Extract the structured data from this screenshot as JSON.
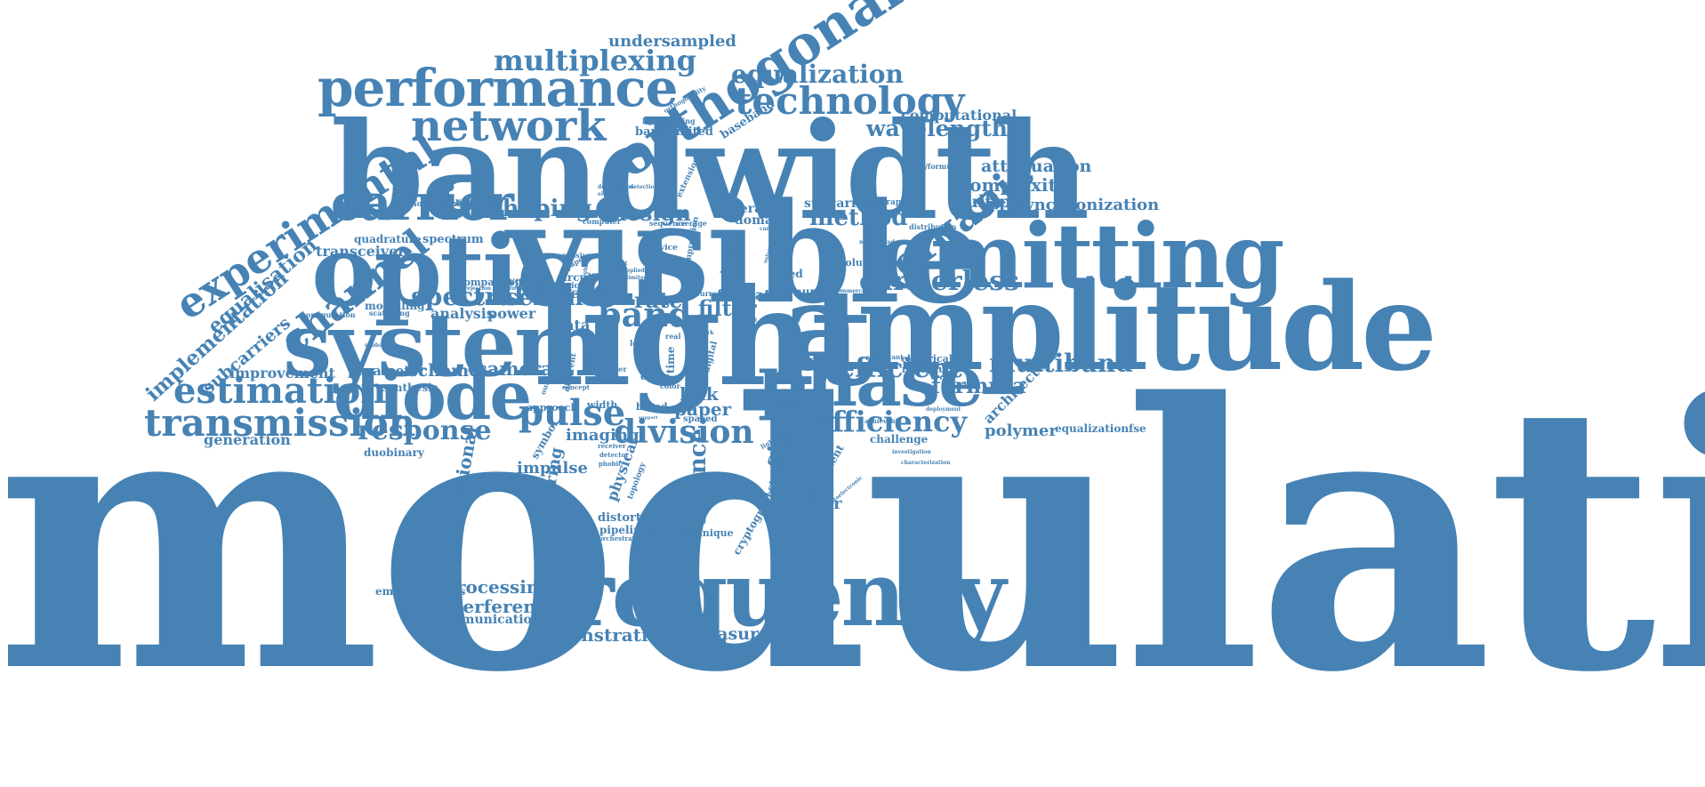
{
  "color": "#4682b4",
  "words": [
    {
      "text": "modulation",
      "size": 4.7,
      "weight": "xxl"
    },
    {
      "text": "bandwidth",
      "size": 1.5
    },
    {
      "text": "visible",
      "size": 1.45
    },
    {
      "text": "light",
      "size": 1.2
    },
    {
      "text": "amplitude",
      "size": 1.2
    },
    {
      "text": "optical",
      "size": 1.0
    },
    {
      "text": "system",
      "size": 1.0
    },
    {
      "text": "frequency",
      "size": 1.0
    },
    {
      "text": "emitting",
      "size": 0.95
    },
    {
      "text": "phase",
      "size": 0.75
    },
    {
      "text": "diode",
      "size": 0.7
    },
    {
      "text": "performance",
      "size": 0.6
    },
    {
      "text": "orthogonal",
      "size": 0.6
    },
    {
      "text": "carrier",
      "size": 0.55
    },
    {
      "text": "network",
      "size": 0.5
    },
    {
      "text": "technology",
      "size": 0.45
    },
    {
      "text": "experimental",
      "size": 0.45
    },
    {
      "text": "channel",
      "size": 0.45
    },
    {
      "text": "transmission",
      "size": 0.45
    },
    {
      "text": "estimation",
      "size": 0.42
    },
    {
      "text": "organic",
      "size": 0.42
    },
    {
      "text": "pulse",
      "size": 0.42
    },
    {
      "text": "division",
      "size": 0.36
    },
    {
      "text": "band",
      "size": 0.36
    },
    {
      "text": "efficiency",
      "size": 0.34
    },
    {
      "text": "carrierless",
      "size": 0.34
    },
    {
      "text": "multiplexing",
      "size": 0.32
    },
    {
      "text": "spectral",
      "size": 0.3
    },
    {
      "text": "response",
      "size": 0.3
    },
    {
      "text": "efficient",
      "size": 0.3
    },
    {
      "text": "equalization",
      "size": 0.28
    },
    {
      "text": "multiband",
      "size": 0.28
    },
    {
      "text": "shaping",
      "size": 0.26
    },
    {
      "text": "method",
      "size": 0.26
    },
    {
      "text": "sefdm",
      "size": 0.26
    },
    {
      "text": "science",
      "size": 0.26
    },
    {
      "text": "wavelength",
      "size": 0.25
    },
    {
      "text": "design",
      "size": 0.24
    },
    {
      "text": "filter",
      "size": 0.24
    },
    {
      "text": "formula",
      "size": 0.24
    },
    {
      "text": "signal",
      "size": 0.24
    },
    {
      "text": "rate",
      "size": 0.24
    },
    {
      "text": "implementation",
      "size": 0.23
    },
    {
      "text": "equalisation",
      "size": 0.22
    },
    {
      "text": "undersampled",
      "size": 0.2
    },
    {
      "text": "camera",
      "size": 0.22
    },
    {
      "text": "conventional",
      "size": 0.2
    },
    {
      "text": "polymer",
      "size": 0.2
    },
    {
      "text": "complexity",
      "size": 0.2
    },
    {
      "text": "attenuation",
      "size": 0.19
    },
    {
      "text": "multiple",
      "size": 0.19
    },
    {
      "text": "synchronization",
      "size": 0.18
    },
    {
      "text": "processing",
      "size": 0.2
    },
    {
      "text": "interference",
      "size": 0.2
    },
    {
      "text": "demonstration",
      "size": 0.2
    },
    {
      "text": "measurement",
      "size": 0.19
    },
    {
      "text": "link",
      "size": 0.2
    },
    {
      "text": "paper",
      "size": 0.2
    },
    {
      "text": "scheme",
      "size": 0.19
    },
    {
      "text": "subcarriers",
      "size": 0.19
    },
    {
      "text": "improvement",
      "size": 0.17
    },
    {
      "text": "generation",
      "size": 0.17
    },
    {
      "text": "engineering",
      "size": 0.18
    },
    {
      "text": "impulse",
      "size": 0.18
    },
    {
      "text": "imaging",
      "size": 0.18
    },
    {
      "text": "equalizer",
      "size": 0.18
    },
    {
      "text": "computational",
      "size": 0.16
    },
    {
      "text": "transceiver",
      "size": 0.16
    },
    {
      "text": "architecture",
      "size": 0.16
    },
    {
      "text": "analysis",
      "size": 0.16
    },
    {
      "text": "power",
      "size": 0.16
    },
    {
      "text": "data",
      "size": 0.16
    },
    {
      "text": "format",
      "size": 0.16
    },
    {
      "text": "parameter",
      "size": 0.16
    },
    {
      "text": "physical",
      "size": 0.16
    },
    {
      "text": "iterative",
      "size": 0.14
    },
    {
      "text": "domain",
      "size": 0.14
    },
    {
      "text": "subcarrier",
      "size": 0.14
    },
    {
      "text": "spectrum",
      "size": 0.13
    },
    {
      "text": "quadrature",
      "size": 0.13
    },
    {
      "text": "modelling",
      "size": 0.12
    },
    {
      "text": "synthesis",
      "size": 0.12
    },
    {
      "text": "communicationvlc",
      "size": 0.14
    },
    {
      "text": "emittingdiodes",
      "size": 0.13
    },
    {
      "text": "duobinary",
      "size": 0.12
    },
    {
      "text": "distortion",
      "size": 0.13
    },
    {
      "text": "pipelining",
      "size": 0.12
    },
    {
      "text": "technique",
      "size": 0.11
    },
    {
      "text": "optic",
      "size": 0.16
    },
    {
      "text": "circuit",
      "size": 0.12
    },
    {
      "text": "baseband",
      "size": 0.13
    },
    {
      "text": "bandlimited",
      "size": 0.13
    },
    {
      "text": "nyquist",
      "size": 0.12
    },
    {
      "text": "comparison",
      "size": 0.11
    },
    {
      "text": "cryptography",
      "size": 0.12
    },
    {
      "text": "component",
      "size": 0.12
    },
    {
      "text": "challenge",
      "size": 0.12
    },
    {
      "text": "electrical",
      "size": 0.11
    },
    {
      "text": "maximum",
      "size": 0.11
    },
    {
      "text": "number",
      "size": 0.12
    },
    {
      "text": "evolution",
      "size": 0.11
    },
    {
      "text": "speed",
      "size": 0.12
    },
    {
      "text": "equalizationfse",
      "size": 0.12
    },
    {
      "text": "standard",
      "size": 0.12
    },
    {
      "text": "symbol",
      "size": 0.12
    },
    {
      "text": "approach",
      "size": 0.11
    },
    {
      "text": "width",
      "size": 0.11
    },
    {
      "text": "based",
      "size": 0.11
    },
    {
      "text": "error",
      "size": 0.11
    },
    {
      "text": "time",
      "size": 0.11
    },
    {
      "text": "holographic",
      "size": 0.09
    },
    {
      "text": "likelihood",
      "size": 0.09
    },
    {
      "text": "holography",
      "size": 0.09
    },
    {
      "text": "configuration",
      "size": 0.08
    },
    {
      "text": "scattering",
      "size": 0.08
    },
    {
      "text": "lightemitting",
      "size": 0.08
    },
    {
      "text": "orthogonality",
      "size": 0.07
    },
    {
      "text": "distribution",
      "size": 0.08
    },
    {
      "text": "tex></formula",
      "size": 0.08
    },
    {
      "text": "computer",
      "size": 0.08
    },
    {
      "text": "sequence",
      "size": 0.08
    },
    {
      "text": "average",
      "size": 0.08
    },
    {
      "text": "orchestration",
      "size": 0.07
    },
    {
      "text": "detector",
      "size": 0.07
    },
    {
      "text": "phobic",
      "size": 0.07
    },
    {
      "text": "receiver",
      "size": 0.07
    },
    {
      "text": "topology",
      "size": 0.09
    },
    {
      "text": "extension",
      "size": 0.09
    },
    {
      "text": "compression",
      "size": 0.09
    },
    {
      "text": "wireless",
      "size": 0.09
    },
    {
      "text": "device",
      "size": 0.09
    },
    {
      "text": "passive",
      "size": 0.08
    },
    {
      "text": "shape",
      "size": 0.08
    },
    {
      "text": "physic",
      "size": 0.09
    },
    {
      "text": "different",
      "size": 0.09
    },
    {
      "text": "order",
      "size": 0.09
    },
    {
      "text": "fiber",
      "size": 0.09
    },
    {
      "text": "meter",
      "size": 0.08
    },
    {
      "text": "led",
      "size": 0.09
    },
    {
      "text": "real",
      "size": 0.08
    },
    {
      "text": "color",
      "size": 0.08
    },
    {
      "text": "spaced",
      "size": 0.1
    },
    {
      "text": "digital",
      "size": 0.1
    },
    {
      "text": "current",
      "size": 0.08
    },
    {
      "text": "output",
      "size": 0.08
    },
    {
      "text": "concept",
      "size": 0.07
    },
    {
      "text": "condition",
      "size": 0.08
    },
    {
      "text": "significant",
      "size": 0.07
    },
    {
      "text": "achievable",
      "size": 0.07
    },
    {
      "text": "deployment",
      "size": 0.06
    },
    {
      "text": "investigation",
      "size": 0.06
    },
    {
      "text": "characterization",
      "size": 0.06
    },
    {
      "text": "lighting",
      "size": 0.07
    },
    {
      "text": "transmitter",
      "size": 0.06
    },
    {
      "text": "advance",
      "size": 0.06
    },
    {
      "text": "development",
      "size": 0.06
    },
    {
      "text": "optoelectronic",
      "size": 0.06
    },
    {
      "text": "degradation",
      "size": 0.06
    },
    {
      "text": "electronic",
      "size": 0.06
    },
    {
      "text": "detection",
      "size": 0.06
    },
    {
      "text": "applied",
      "size": 0.06
    },
    {
      "text": "limited",
      "size": 0.06
    },
    {
      "text": "higher",
      "size": 0.06
    },
    {
      "text": "present",
      "size": 0.06
    },
    {
      "text": "work",
      "size": 0.06
    },
    {
      "text": "budget",
      "size": 0.06
    },
    {
      "text": "propose",
      "size": 0.06
    },
    {
      "text": "multiplexed",
      "size": 0.06
    },
    {
      "text": "commercial",
      "size": 0.06
    },
    {
      "text": "solution",
      "size": 0.06
    },
    {
      "text": "candidate",
      "size": 0.06
    },
    {
      "text": "subband",
      "size": 0.06
    },
    {
      "text": "rejection",
      "size": 0.06
    },
    {
      "text": "potential",
      "size": 0.06
    },
    {
      "text": "support",
      "size": 0.05
    },
    {
      "text": "traditional",
      "size": 0.05
    }
  ]
}
